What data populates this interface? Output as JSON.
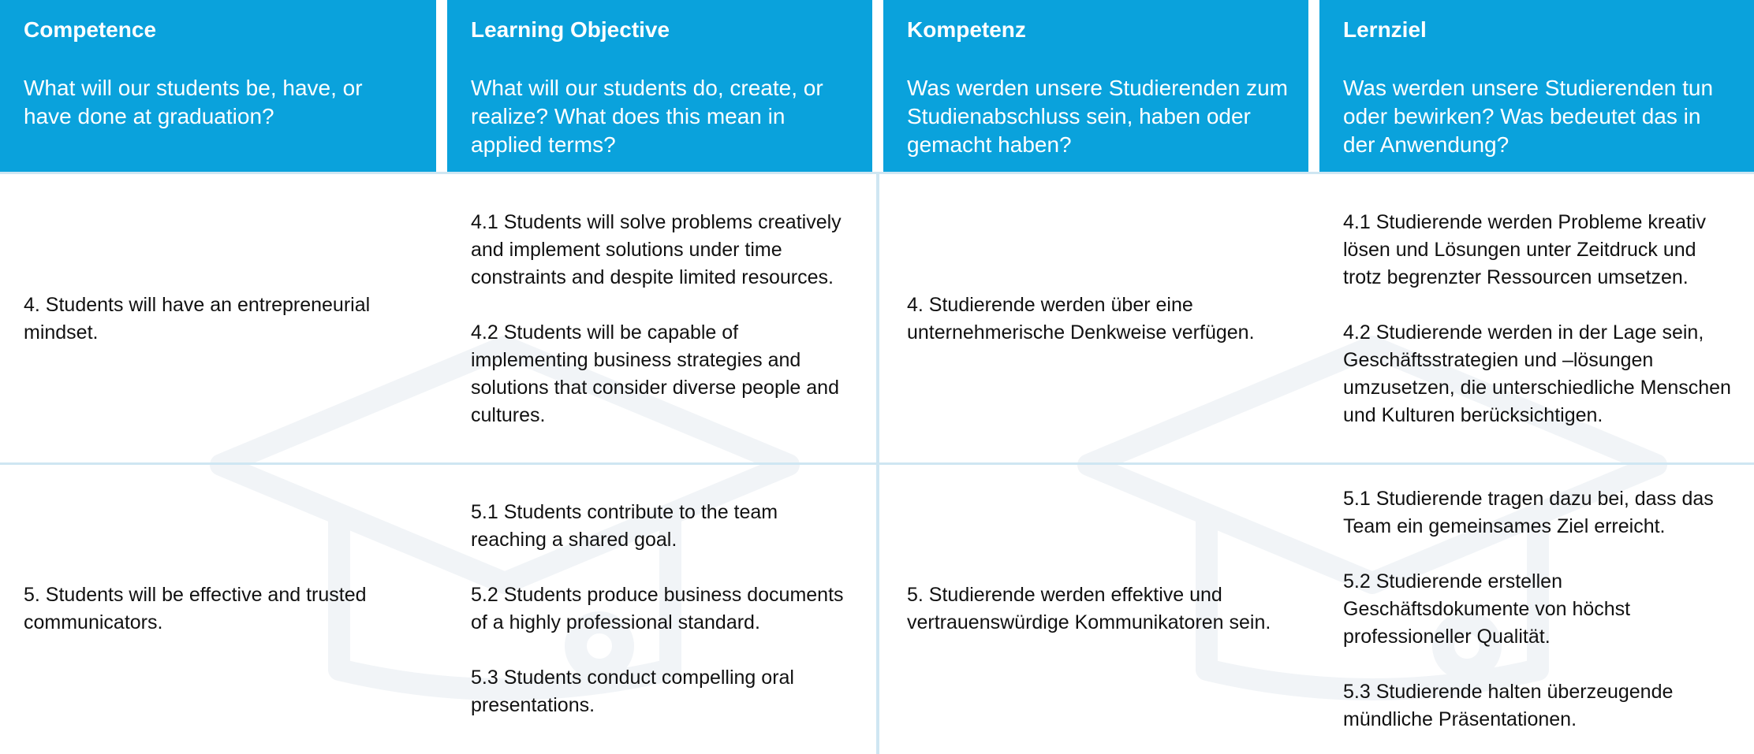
{
  "header": [
    {
      "title": "Competence",
      "question": "What will our students be, have, or have done at graduation?"
    },
    {
      "title": "Learning Objective",
      "question": "What will our students do, create, or realize? What does this mean in applied terms?"
    },
    {
      "title": "Kompetenz",
      "question": "Was werden unsere Studierenden zum Studienabschluss sein, haben oder gemacht haben?"
    },
    {
      "title": "Lernziel",
      "question": "Was werden unsere Studierenden tun oder bewirken? Was bedeutet das in der Anwendung?"
    }
  ],
  "rows": [
    [
      [
        "4. Students will have an entrepreneurial mindset."
      ],
      [
        "4.1 Students will solve problems creatively and implement solutions under time constraints and despite limited resources.",
        "4.2 Students will be capable of implementing business strategies and solutions that consider diverse people and cultures."
      ],
      [
        "4. Studierende werden über eine unternehmerische Denkweise verfügen."
      ],
      [
        "4.1 Studierende werden Probleme kreativ lösen und Lösungen unter Zeitdruck und trotz begrenzter Ressourcen umsetzen.",
        "4.2 Studierende werden in der Lage sein, Geschäftsstrategien und –lösungen umzusetzen, die unterschiedliche Menschen und Kulturen berücksichtigen."
      ]
    ],
    [
      [
        "5. Students will be effective and trusted communicators."
      ],
      [
        "5.1 Students contribute to the team reaching a shared goal.",
        "5.2 Students produce business documents of a highly professional standard.",
        "5.3 Students conduct compelling oral presentations."
      ],
      [
        "5. Studierende werden effektive und vertrauenswürdige Kommunikatoren sein."
      ],
      [
        "5.1 Studierende tragen dazu bei, dass das Team ein gemeinsames Ziel erreicht.",
        "5.2 Studierende erstellen Geschäftsdokumente von höchst professioneller Qualität.",
        "5.3 Studierende halten überzeugende mündliche Präsentationen."
      ]
    ]
  ]
}
